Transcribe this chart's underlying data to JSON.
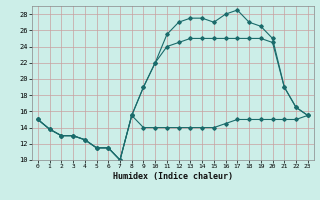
{
  "xlabel": "Humidex (Indice chaleur)",
  "background_color": "#cceee8",
  "line_color": "#1a6b6b",
  "xlim": [
    -0.5,
    23.5
  ],
  "ylim": [
    10,
    29
  ],
  "yticks": [
    10,
    12,
    14,
    16,
    18,
    20,
    22,
    24,
    26,
    28
  ],
  "xticks": [
    0,
    1,
    2,
    3,
    4,
    5,
    6,
    7,
    8,
    9,
    10,
    11,
    12,
    13,
    14,
    15,
    16,
    17,
    18,
    19,
    20,
    21,
    22,
    23
  ],
  "curve1_x": [
    0,
    1,
    2,
    3,
    4,
    5,
    6,
    7,
    8,
    9,
    10,
    11,
    12,
    13,
    14,
    15,
    16,
    17,
    18,
    19,
    20,
    21,
    22,
    23
  ],
  "curve1_y": [
    15.0,
    13.8,
    13.0,
    13.0,
    12.5,
    11.5,
    11.5,
    10.0,
    15.5,
    14.0,
    14.0,
    14.0,
    14.0,
    14.0,
    14.0,
    14.0,
    14.5,
    15.0,
    15.0,
    15.0,
    15.0,
    15.0,
    15.0,
    15.5
  ],
  "curve2_x": [
    0,
    1,
    2,
    3,
    4,
    5,
    6,
    7,
    8,
    9,
    10,
    11,
    12,
    13,
    14,
    15,
    16,
    17,
    18,
    19,
    20,
    21,
    22,
    23
  ],
  "curve2_y": [
    15.0,
    13.8,
    13.0,
    13.0,
    12.5,
    11.5,
    11.5,
    10.0,
    15.5,
    19.0,
    22.0,
    24.0,
    24.5,
    25.0,
    25.0,
    25.0,
    25.0,
    25.0,
    25.0,
    25.0,
    24.5,
    19.0,
    16.5,
    15.5
  ],
  "curve3_x": [
    0,
    1,
    2,
    3,
    4,
    5,
    6,
    7,
    8,
    9,
    10,
    11,
    12,
    13,
    14,
    15,
    16,
    17,
    18,
    19,
    20,
    21,
    22,
    23
  ],
  "curve3_y": [
    15.0,
    13.8,
    13.0,
    13.0,
    12.5,
    11.5,
    11.5,
    10.0,
    15.5,
    19.0,
    22.0,
    25.5,
    27.0,
    27.5,
    27.5,
    27.0,
    28.0,
    28.5,
    27.0,
    26.5,
    25.0,
    19.0,
    16.5,
    15.5
  ]
}
